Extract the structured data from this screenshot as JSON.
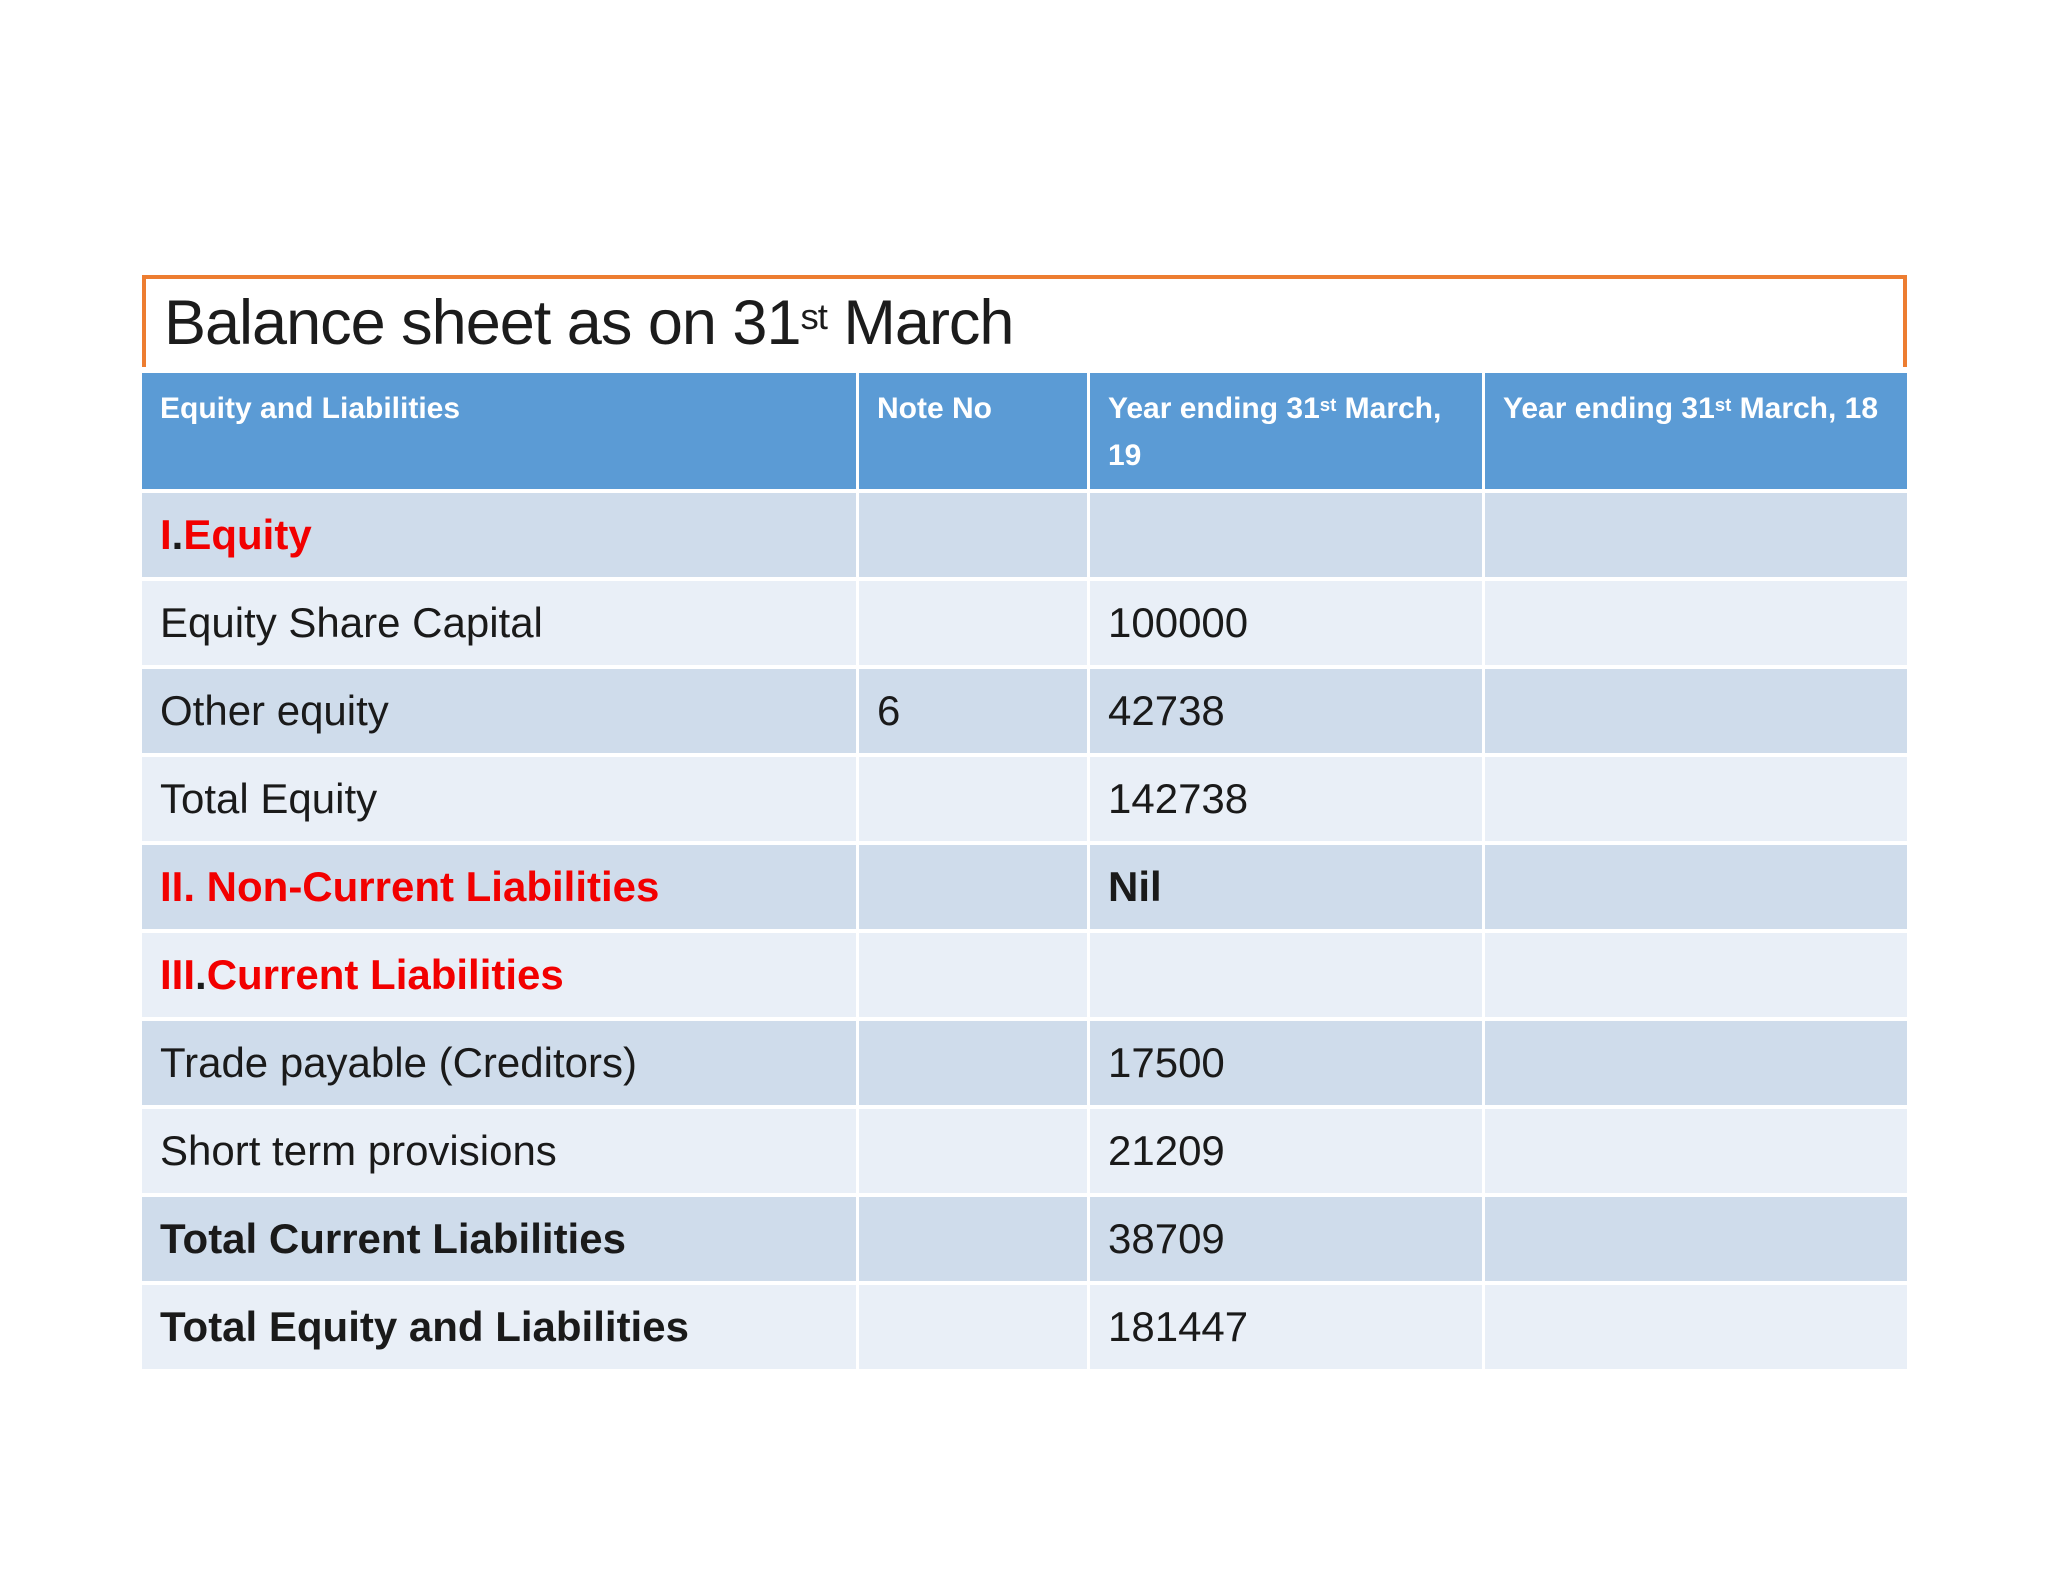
{
  "colors": {
    "header_bg": "#5B9BD5",
    "header_text": "#FFFFFF",
    "band_dark": "#CFDCEB",
    "band_light": "#E9EFF7",
    "title_border": "#ED7D31",
    "red": "#F20000",
    "text": "#1A1A1A"
  },
  "title": {
    "segments": [
      {
        "t": "Balance sheet as on 31"
      },
      {
        "t": "st",
        "sup": true
      },
      {
        "t": " March"
      }
    ]
  },
  "table": {
    "columns": [
      {
        "segments": [
          {
            "t": "Equity and Liabilities"
          }
        ]
      },
      {
        "segments": [
          {
            "t": "Note No"
          }
        ]
      },
      {
        "segments": [
          {
            "t": "Year ending 31"
          },
          {
            "t": "st",
            "sup": true
          },
          {
            "t": " March, 19"
          }
        ]
      },
      {
        "segments": [
          {
            "t": "Year ending 31"
          },
          {
            "t": "st",
            "sup": true
          },
          {
            "t": " March, 18"
          }
        ]
      }
    ],
    "rows": [
      {
        "band": "dark",
        "label": [
          {
            "t": "I",
            "red": true,
            "b": true
          },
          {
            "t": ".",
            "b": true
          },
          {
            "t": " Equity",
            "red": true,
            "b": true
          }
        ],
        "note": [],
        "y19": [],
        "y18": []
      },
      {
        "band": "light",
        "label": [
          {
            "t": "Equity Share Capital"
          }
        ],
        "note": [],
        "y19": [
          {
            "t": "100000"
          }
        ],
        "y18": []
      },
      {
        "band": "dark",
        "label": [
          {
            "t": "Other equity"
          }
        ],
        "note": [
          {
            "t": "6"
          }
        ],
        "y19": [
          {
            "t": "42738"
          }
        ],
        "y18": []
      },
      {
        "band": "light",
        "label": [
          {
            "t": "Total Equity"
          }
        ],
        "note": [],
        "y19": [
          {
            "t": "142738"
          }
        ],
        "y18": []
      },
      {
        "band": "dark",
        "label": [
          {
            "t": "II. Non-Current Liabilities",
            "red": true,
            "b": true
          }
        ],
        "note": [],
        "y19": [
          {
            "t": "Nil",
            "b": true
          }
        ],
        "y18": []
      },
      {
        "band": "light",
        "label": [
          {
            "t": "III",
            "red": true,
            "b": true
          },
          {
            "t": ".",
            "b": true
          },
          {
            "t": " Current Liabilities",
            "red": true,
            "b": true
          }
        ],
        "note": [],
        "y19": [],
        "y18": []
      },
      {
        "band": "dark",
        "label": [
          {
            "t": "Trade payable (Creditors)"
          }
        ],
        "note": [],
        "y19": [
          {
            "t": "17500"
          }
        ],
        "y18": []
      },
      {
        "band": "light",
        "label": [
          {
            "t": "Short term provisions"
          }
        ],
        "note": [],
        "y19": [
          {
            "t": "21209"
          }
        ],
        "y18": []
      },
      {
        "band": "dark",
        "label": [
          {
            "t": "Total Current Liabilities",
            "b": true
          }
        ],
        "note": [],
        "y19": [
          {
            "t": "38709"
          }
        ],
        "y18": []
      },
      {
        "band": "light",
        "label": [
          {
            "t": "Total Equity and Liabilities",
            "b": true
          }
        ],
        "note": [],
        "y19": [
          {
            "t": "181447"
          }
        ],
        "y18": []
      }
    ]
  }
}
